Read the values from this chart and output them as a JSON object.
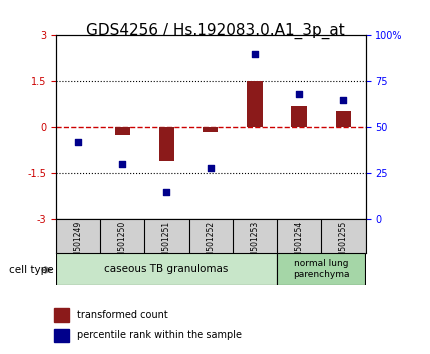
{
  "title": "GDS4256 / Hs.192083.0.A1_3p_at",
  "samples": [
    "GSM501249",
    "GSM501250",
    "GSM501251",
    "GSM501252",
    "GSM501253",
    "GSM501254",
    "GSM501255"
  ],
  "transformed_count": [
    0.0,
    -0.25,
    -1.1,
    -0.15,
    1.52,
    0.7,
    0.55
  ],
  "percentile_rank": [
    42,
    30,
    15,
    28,
    90,
    68,
    65
  ],
  "ylim_left": [
    -3,
    3
  ],
  "ylim_right": [
    0,
    100
  ],
  "yticks_left": [
    -3,
    -1.5,
    0,
    1.5,
    3
  ],
  "yticks_right": [
    0,
    25,
    50,
    75,
    100
  ],
  "bar_color": "#8B1A1A",
  "dot_color": "#00008B",
  "dashed_color": "#CC0000",
  "group1_label": "caseous TB granulomas",
  "group2_label": "normal lung\nparenchyma",
  "group1_color": "#c8e6c9",
  "group2_color": "#a5d6a7",
  "cell_type_label": "cell type",
  "legend_bar_label": "transformed count",
  "legend_dot_label": "percentile rank within the sample",
  "title_fontsize": 11,
  "tick_fontsize": 7,
  "label_fontsize": 8
}
